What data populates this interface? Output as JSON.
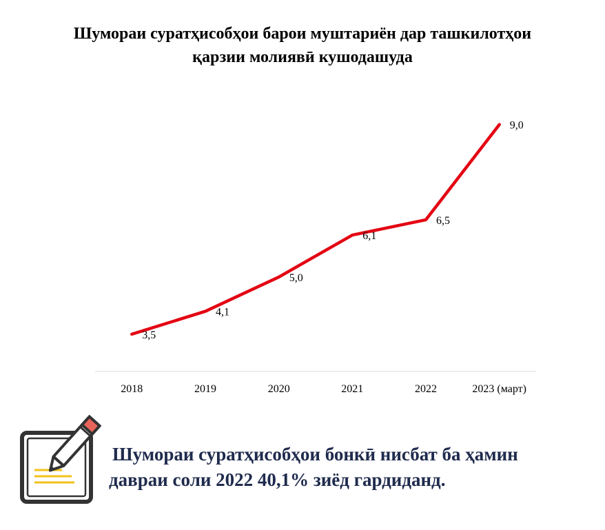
{
  "title": {
    "line1": "Шумораи суратҳисобҳои барои муштариён дар ташкилотҳои",
    "line2": "қарзии молиявӣ кушодашуда"
  },
  "chart_data": {
    "type": "line",
    "title": "Шумораи суратҳисобҳои барои муштариён дар ташкилотҳои қарзии молиявӣ кушодашуда",
    "categories": [
      "2018",
      "2019",
      "2020",
      "2021",
      "2022",
      "2023 (март)"
    ],
    "series": [
      {
        "values": [
          3.5,
          4.1,
          5.0,
          6.1,
          6.5,
          9.0
        ],
        "data_labels": [
          "3,5",
          "4,1",
          "5,0",
          "6,1",
          "6,5",
          "9,0"
        ],
        "color": "#e30613"
      }
    ],
    "xlabel": "",
    "ylabel": "",
    "ylim": [
      0,
      10
    ],
    "grid": false,
    "legend": "none"
  },
  "note": {
    "icon": "notepad-pencil-icon",
    "line1": "Шумораи суратҳисобҳои бонкӣ нисбат ба ҳамин",
    "line2": "давраи соли 2022 40,1% зиёд гардиданд."
  },
  "colors": {
    "line": "#e30613",
    "note_text": "#1f2b4d",
    "icon_frame": "#333333",
    "icon_lines": "#f2c21b",
    "icon_pencil_tip": "#e8645a"
  }
}
